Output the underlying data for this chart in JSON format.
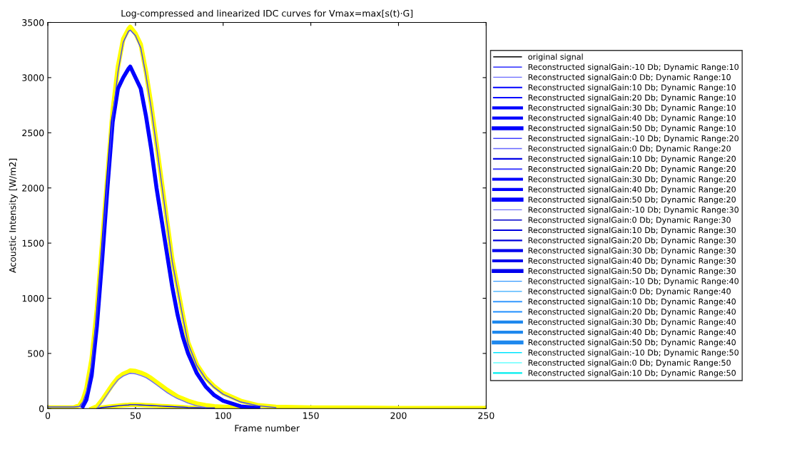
{
  "chart_data": {
    "type": "line",
    "title": "Log-compressed and linearized IDC curves for Vmax=max[s(t)·G]",
    "xlabel": "Frame number",
    "ylabel": "Acoustic Intensity [W/m2]",
    "x": [
      0,
      15,
      18,
      20,
      22,
      25,
      28,
      31,
      34,
      37,
      40,
      43,
      46,
      47,
      50,
      53,
      56,
      59,
      62,
      65,
      68,
      71,
      74,
      77,
      80,
      85,
      90,
      95,
      100,
      110,
      120,
      130,
      150,
      200,
      250
    ],
    "xlim": [
      0,
      250
    ],
    "xticks": [
      0,
      50,
      100,
      150,
      200,
      250
    ],
    "ylim": [
      0,
      3500
    ],
    "yticks": [
      0,
      500,
      1000,
      1500,
      2000,
      2500,
      3000,
      3500
    ],
    "grid": false,
    "legend": "right",
    "series": [
      {
        "color": "#ffff00",
        "values": [
          10,
          10,
          30,
          80,
          180,
          450,
          900,
          1500,
          2100,
          2700,
          3100,
          3350,
          3440,
          3460,
          3400,
          3300,
          3050,
          2750,
          2400,
          2050,
          1700,
          1350,
          1100,
          850,
          600,
          400,
          280,
          200,
          140,
          70,
          30,
          15,
          10,
          5,
          5
        ]
      },
      {
        "color": "#ffff00",
        "values": [
          null,
          null,
          null,
          null,
          null,
          0,
          20,
          80,
          150,
          220,
          280,
          315,
          335,
          345,
          340,
          325,
          305,
          275,
          240,
          205,
          170,
          140,
          110,
          90,
          70,
          45,
          30,
          20,
          15,
          8,
          null,
          null,
          null,
          null,
          null
        ]
      },
      {
        "color": "#ffff00",
        "values": [
          null,
          null,
          null,
          null,
          null,
          null,
          0,
          10,
          15,
          20,
          25,
          30,
          33,
          35,
          35,
          33,
          30,
          28,
          25,
          22,
          20,
          18,
          15,
          13,
          10,
          8,
          6,
          5,
          null,
          null,
          null,
          null,
          null,
          null,
          null
        ]
      },
      {
        "name": "original signal",
        "color": "#000000",
        "values": [
          null,
          null,
          null,
          null,
          null,
          null,
          null,
          null,
          null,
          null,
          null,
          null,
          null,
          null,
          null,
          null,
          null,
          null,
          null,
          null,
          null,
          null,
          null,
          null,
          null,
          null,
          null,
          null,
          null,
          null,
          null,
          null,
          null,
          null,
          null
        ]
      },
      {
        "name": "Reconstructed signalGain:-10 Db; Dynamic Range:10",
        "color": "#0000ff",
        "values": [
          null,
          null,
          null,
          null,
          null,
          null,
          0,
          10,
          15,
          20,
          25,
          30,
          33,
          35,
          35,
          33,
          30,
          28,
          25,
          22,
          20,
          18,
          15,
          13,
          10,
          8,
          6,
          5,
          null,
          null,
          null,
          null,
          null,
          null,
          null
        ]
      },
      {
        "name": "Reconstructed signalGain:0 Db; Dynamic Range:10",
        "color": "#6a6aff",
        "values": [
          null,
          null,
          null,
          null,
          null,
          null,
          0,
          60,
          130,
          200,
          260,
          295,
          315,
          320,
          315,
          300,
          280,
          250,
          215,
          180,
          145,
          115,
          90,
          70,
          50,
          25,
          10,
          null,
          null,
          null,
          null,
          null,
          null,
          null,
          null
        ]
      },
      {
        "name": "Reconstructed signalGain:10 Db; Dynamic Range:10",
        "color": "#0000ff",
        "values": [
          null,
          null,
          null,
          null,
          null,
          null,
          null,
          null,
          null,
          null,
          null,
          null,
          null,
          null,
          null,
          null,
          null,
          null,
          null,
          null,
          null,
          null,
          null,
          null,
          null,
          null,
          null,
          null,
          null,
          null,
          null,
          null,
          null,
          null,
          null
        ]
      },
      {
        "name": "Reconstructed signalGain:20 Db; Dynamic Range:10",
        "color": "#0000ff",
        "values": [
          null,
          null,
          null,
          null,
          null,
          null,
          null,
          null,
          null,
          null,
          null,
          null,
          null,
          null,
          null,
          null,
          null,
          null,
          null,
          null,
          null,
          null,
          null,
          null,
          null,
          null,
          null,
          null,
          null,
          null,
          null,
          null,
          null,
          null,
          null
        ]
      },
      {
        "name": "Reconstructed signalGain:30 Db; Dynamic Range:10",
        "color": "#0000ff",
        "values": [
          null,
          null,
          null,
          null,
          null,
          null,
          null,
          null,
          null,
          null,
          null,
          null,
          null,
          null,
          null,
          null,
          null,
          null,
          null,
          null,
          null,
          null,
          null,
          null,
          null,
          null,
          null,
          null,
          null,
          null,
          null,
          null,
          null,
          null,
          null
        ]
      },
      {
        "name": "Reconstructed signalGain:40 Db; Dynamic Range:10",
        "color": "#0000ff",
        "values": [
          null,
          null,
          null,
          null,
          null,
          null,
          null,
          null,
          null,
          null,
          null,
          null,
          null,
          null,
          null,
          null,
          null,
          null,
          null,
          null,
          null,
          null,
          null,
          null,
          null,
          null,
          null,
          null,
          null,
          null,
          null,
          null,
          null,
          null,
          null
        ]
      },
      {
        "name": "Reconstructed signalGain:50 Db; Dynamic Range:10",
        "color": "#0000ff",
        "values": [
          null,
          null,
          null,
          20,
          80,
          300,
          750,
          1350,
          2000,
          2600,
          2900,
          3000,
          3080,
          3100,
          3000,
          2900,
          2650,
          2350,
          2000,
          1700,
          1400,
          1100,
          850,
          650,
          500,
          320,
          200,
          120,
          70,
          20,
          5,
          null,
          null,
          null,
          null
        ]
      },
      {
        "name": "Reconstructed signalGain:-10 Db; Dynamic Range:20",
        "color": "#4040ff",
        "values": [
          15,
          15,
          20,
          60,
          150,
          400,
          850,
          1450,
          2050,
          2650,
          3050,
          3320,
          3420,
          3430,
          3380,
          3270,
          3020,
          2720,
          2380,
          2030,
          1680,
          1330,
          1080,
          830,
          590,
          390,
          270,
          190,
          130,
          60,
          25,
          10,
          null,
          null,
          null
        ]
      },
      {
        "name": "Reconstructed signalGain:0 Db; Dynamic Range:20",
        "color": "#6666ff",
        "values": [
          null,
          null,
          null,
          null,
          null,
          null,
          null,
          null,
          null,
          null,
          null,
          null,
          null,
          null,
          null,
          null,
          null,
          null,
          null,
          null,
          null,
          null,
          null,
          null,
          null,
          null,
          null,
          null,
          null,
          null,
          null,
          null,
          null,
          null,
          null
        ]
      },
      {
        "name": "Reconstructed signalGain:10 Db; Dynamic Range:20",
        "color": "#0000e6",
        "values": [
          null,
          null,
          null,
          null,
          null,
          null,
          null,
          null,
          null,
          null,
          null,
          null,
          null,
          null,
          null,
          null,
          null,
          null,
          null,
          null,
          null,
          null,
          null,
          null,
          null,
          null,
          null,
          null,
          null,
          null,
          null,
          null,
          null,
          null,
          null
        ]
      },
      {
        "name": "Reconstructed signalGain:20 Db; Dynamic Range:20",
        "color": "#4040ff",
        "values": [
          null,
          null,
          null,
          null,
          null,
          null,
          null,
          null,
          null,
          null,
          null,
          null,
          null,
          null,
          null,
          null,
          null,
          null,
          null,
          null,
          null,
          null,
          null,
          null,
          null,
          null,
          null,
          null,
          null,
          null,
          null,
          null,
          null,
          null,
          null
        ]
      },
      {
        "name": "Reconstructed signalGain:30 Db; Dynamic Range:20",
        "color": "#0000ff",
        "values": [
          null,
          null,
          null,
          null,
          null,
          null,
          null,
          null,
          null,
          null,
          null,
          null,
          null,
          null,
          null,
          null,
          null,
          null,
          null,
          null,
          null,
          null,
          null,
          null,
          null,
          null,
          null,
          null,
          null,
          null,
          null,
          null,
          null,
          null,
          null
        ]
      },
      {
        "name": "Reconstructed signalGain:40 Db; Dynamic Range:20",
        "color": "#0000ff",
        "values": [
          null,
          null,
          null,
          null,
          null,
          null,
          null,
          null,
          null,
          null,
          null,
          null,
          null,
          null,
          null,
          null,
          null,
          null,
          null,
          null,
          null,
          null,
          null,
          null,
          null,
          null,
          null,
          null,
          null,
          null,
          null,
          null,
          null,
          null,
          null
        ]
      },
      {
        "name": "Reconstructed signalGain:50 Db; Dynamic Range:20",
        "color": "#0000ff",
        "values": [
          null,
          null,
          null,
          null,
          null,
          null,
          null,
          null,
          null,
          null,
          null,
          null,
          null,
          null,
          null,
          null,
          null,
          null,
          null,
          null,
          null,
          null,
          null,
          null,
          null,
          null,
          null,
          null,
          null,
          null,
          null,
          null,
          null,
          null,
          null
        ]
      },
      {
        "name": "Reconstructed signalGain:-10 Db; Dynamic Range:30",
        "color": "#7070ff",
        "values": [
          null,
          null,
          null,
          null,
          null,
          null,
          null,
          null,
          null,
          null,
          null,
          null,
          null,
          null,
          null,
          null,
          null,
          null,
          null,
          null,
          null,
          null,
          null,
          null,
          null,
          null,
          null,
          null,
          null,
          null,
          null,
          null,
          null,
          null,
          null
        ]
      },
      {
        "name": "Reconstructed signalGain:0 Db; Dynamic Range:30",
        "color": "#0000cc",
        "values": [
          null,
          null,
          null,
          null,
          null,
          null,
          null,
          null,
          null,
          null,
          null,
          null,
          null,
          null,
          null,
          null,
          null,
          null,
          null,
          null,
          null,
          null,
          null,
          null,
          null,
          null,
          null,
          null,
          null,
          null,
          null,
          null,
          null,
          null,
          null
        ]
      },
      {
        "name": "Reconstructed signalGain:10 Db; Dynamic Range:30",
        "color": "#0000e0",
        "values": [
          null,
          null,
          null,
          null,
          null,
          null,
          null,
          null,
          null,
          null,
          null,
          null,
          null,
          null,
          null,
          null,
          null,
          null,
          null,
          null,
          null,
          null,
          null,
          null,
          null,
          null,
          null,
          null,
          null,
          null,
          null,
          null,
          null,
          null,
          null
        ]
      },
      {
        "name": "Reconstructed signalGain:20 Db; Dynamic Range:30",
        "color": "#0000dd",
        "values": [
          null,
          null,
          null,
          null,
          null,
          null,
          null,
          null,
          null,
          null,
          null,
          null,
          null,
          null,
          null,
          null,
          null,
          null,
          null,
          null,
          null,
          null,
          null,
          null,
          null,
          null,
          null,
          null,
          null,
          null,
          null,
          null,
          null,
          null,
          null
        ]
      },
      {
        "name": "Reconstructed signalGain:30 Db; Dynamic Range:30",
        "color": "#0000ee",
        "values": [
          null,
          null,
          null,
          null,
          null,
          null,
          null,
          null,
          null,
          null,
          null,
          null,
          null,
          null,
          null,
          null,
          null,
          null,
          null,
          null,
          null,
          null,
          null,
          null,
          null,
          null,
          null,
          null,
          null,
          null,
          null,
          null,
          null,
          null,
          null
        ]
      },
      {
        "name": "Reconstructed signalGain:40 Db; Dynamic Range:30",
        "color": "#0000ee",
        "values": [
          null,
          null,
          null,
          null,
          null,
          null,
          null,
          null,
          null,
          null,
          null,
          null,
          null,
          null,
          null,
          null,
          null,
          null,
          null,
          null,
          null,
          null,
          null,
          null,
          null,
          null,
          null,
          null,
          null,
          null,
          null,
          null,
          null,
          null,
          null
        ]
      },
      {
        "name": "Reconstructed signalGain:50 Db; Dynamic Range:30",
        "color": "#0000ee",
        "values": [
          null,
          null,
          null,
          null,
          null,
          null,
          null,
          null,
          null,
          null,
          null,
          null,
          null,
          null,
          null,
          null,
          null,
          null,
          null,
          null,
          null,
          null,
          null,
          null,
          null,
          null,
          null,
          null,
          null,
          null,
          null,
          null,
          null,
          null,
          null
        ]
      },
      {
        "name": "Reconstructed signalGain:-10 Db; Dynamic Range:40",
        "color": "#3399ff",
        "values": [
          null,
          null,
          null,
          null,
          null,
          null,
          null,
          null,
          null,
          null,
          null,
          null,
          null,
          null,
          null,
          null,
          null,
          null,
          null,
          null,
          null,
          null,
          null,
          null,
          null,
          null,
          null,
          null,
          null,
          null,
          null,
          null,
          null,
          null,
          null
        ]
      },
      {
        "name": "Reconstructed signalGain:0 Db; Dynamic Range:40",
        "color": "#33aaff",
        "values": [
          null,
          null,
          null,
          null,
          null,
          null,
          null,
          null,
          null,
          null,
          null,
          null,
          null,
          null,
          null,
          null,
          null,
          null,
          null,
          null,
          null,
          null,
          null,
          null,
          null,
          null,
          null,
          null,
          null,
          null,
          null,
          null,
          null,
          null,
          null
        ]
      },
      {
        "name": "Reconstructed signalGain:10 Db; Dynamic Range:40",
        "color": "#3399ff",
        "values": [
          null,
          null,
          null,
          null,
          null,
          null,
          null,
          null,
          null,
          null,
          null,
          null,
          null,
          null,
          null,
          null,
          null,
          null,
          null,
          null,
          null,
          null,
          null,
          null,
          null,
          null,
          null,
          null,
          null,
          null,
          null,
          null,
          null,
          null,
          null
        ]
      },
      {
        "name": "Reconstructed signalGain:20 Db; Dynamic Range:40",
        "color": "#1f8fff",
        "values": [
          null,
          null,
          null,
          null,
          null,
          null,
          null,
          null,
          null,
          null,
          null,
          null,
          null,
          null,
          null,
          null,
          null,
          null,
          null,
          null,
          null,
          null,
          null,
          null,
          null,
          null,
          null,
          null,
          null,
          null,
          null,
          null,
          null,
          null,
          null
        ]
      },
      {
        "name": "Reconstructed signalGain:30 Db; Dynamic Range:40",
        "color": "#1e88ee",
        "values": [
          null,
          null,
          null,
          null,
          null,
          null,
          null,
          null,
          null,
          null,
          null,
          null,
          null,
          null,
          null,
          null,
          null,
          null,
          null,
          null,
          null,
          null,
          null,
          null,
          null,
          null,
          null,
          null,
          null,
          null,
          null,
          null,
          null,
          null,
          null
        ]
      },
      {
        "name": "Reconstructed signalGain:40 Db; Dynamic Range:40",
        "color": "#1e88ee",
        "values": [
          null,
          null,
          null,
          null,
          null,
          null,
          null,
          null,
          null,
          null,
          null,
          null,
          null,
          null,
          null,
          null,
          null,
          null,
          null,
          null,
          null,
          null,
          null,
          null,
          null,
          null,
          null,
          null,
          null,
          null,
          null,
          null,
          null,
          null,
          null
        ]
      },
      {
        "name": "Reconstructed signalGain:50 Db; Dynamic Range:40",
        "color": "#1e88ee",
        "values": [
          null,
          null,
          null,
          null,
          null,
          null,
          null,
          null,
          null,
          null,
          null,
          null,
          null,
          null,
          null,
          null,
          null,
          null,
          null,
          null,
          null,
          null,
          null,
          null,
          null,
          null,
          null,
          null,
          null,
          null,
          null,
          null,
          null,
          null,
          null
        ]
      },
      {
        "name": "Reconstructed signalGain:-10 Db; Dynamic Range:50",
        "color": "#00e5ff",
        "values": [
          null,
          null,
          null,
          null,
          null,
          null,
          null,
          null,
          null,
          null,
          null,
          null,
          null,
          null,
          null,
          null,
          null,
          null,
          null,
          null,
          null,
          null,
          null,
          null,
          null,
          null,
          null,
          null,
          null,
          null,
          null,
          null,
          null,
          null,
          null
        ]
      },
      {
        "name": "Reconstructed signalGain:0 Db; Dynamic Range:50",
        "color": "#66ffff",
        "values": [
          null,
          null,
          null,
          null,
          null,
          null,
          null,
          null,
          null,
          null,
          null,
          null,
          null,
          null,
          null,
          null,
          null,
          null,
          null,
          null,
          null,
          null,
          null,
          null,
          null,
          null,
          null,
          null,
          null,
          null,
          null,
          null,
          null,
          null,
          null
        ]
      },
      {
        "name": "Reconstructed signalGain:10 Db; Dynamic Range:50",
        "color": "#00eeee",
        "values": [
          null,
          null,
          null,
          null,
          null,
          null,
          null,
          null,
          null,
          null,
          null,
          null,
          null,
          null,
          null,
          null,
          null,
          null,
          null,
          null,
          null,
          null,
          null,
          null,
          null,
          null,
          null,
          null,
          null,
          null,
          null,
          null,
          null,
          null,
          null
        ]
      }
    ]
  }
}
